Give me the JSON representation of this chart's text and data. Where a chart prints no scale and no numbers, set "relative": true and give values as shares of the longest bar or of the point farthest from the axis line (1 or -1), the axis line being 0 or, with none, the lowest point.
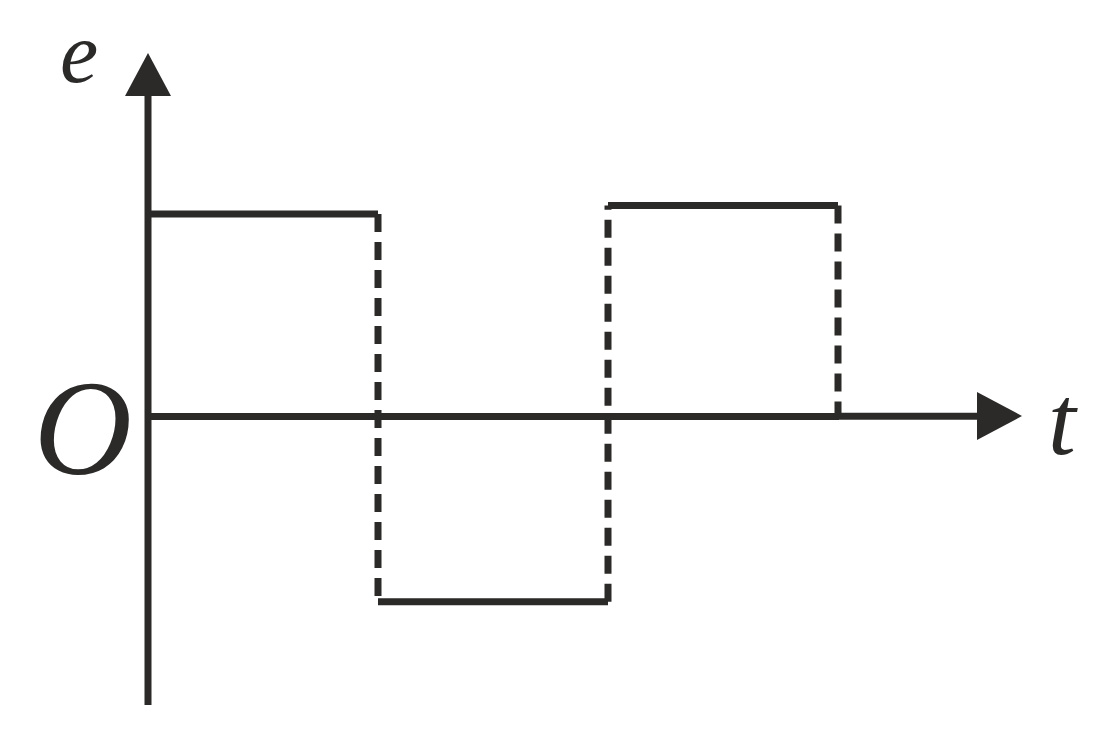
{
  "chart_data": {
    "type": "step",
    "xlabel": "t",
    "ylabel": "e",
    "annotations": [
      "O"
    ],
    "categories": [
      null,
      null,
      null,
      null
    ],
    "relative": true,
    "values": [
      0.96,
      -0.88,
      1,
      0
    ],
    "color": "#2b2a29"
  }
}
